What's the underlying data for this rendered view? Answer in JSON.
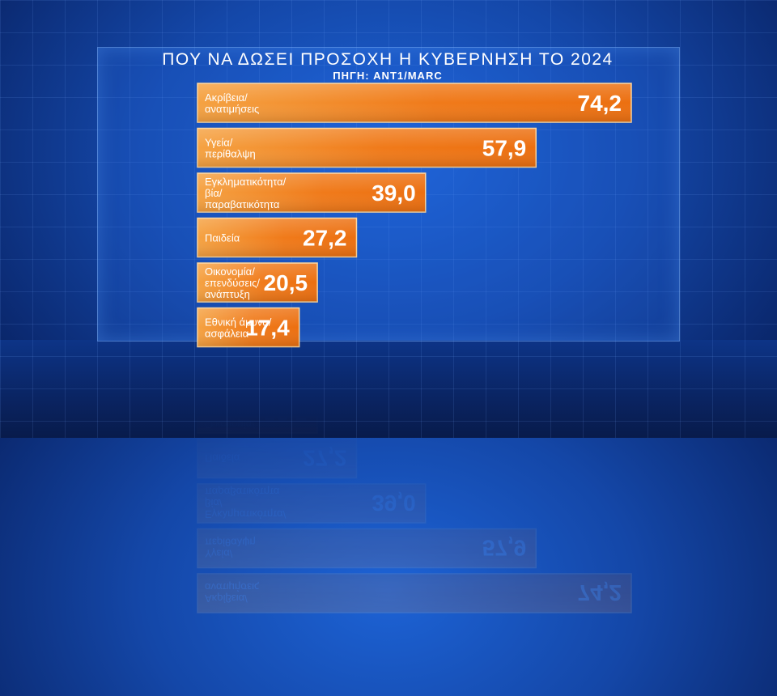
{
  "chart_data": {
    "type": "bar",
    "orientation": "horizontal",
    "title": "ΠΟΥ ΝΑ ΔΩΣΕΙ ΠΡΟΣΟΧΗ Η ΚΥΒΕΡΝΗΣΗ ΤΟ 2024",
    "subtitle": "ΠΗΓΗ: ANT1/MARC",
    "categories": [
      [
        "Ακρίβεια/",
        "ανατιμήσεις"
      ],
      [
        "Υγεία/",
        "περίθαλψη"
      ],
      [
        "Εγκληματικότητα/",
        "βία/",
        "παραβατικότητα"
      ],
      [
        "Παιδεία"
      ],
      [
        "Οικονομία/",
        "επενδύσεις/",
        "ανάπτυξη"
      ],
      [
        "Εθνική άμυνα/",
        "ασφάλεια"
      ]
    ],
    "values": [
      74.2,
      57.9,
      39.0,
      27.2,
      20.5,
      17.4
    ],
    "value_labels": [
      "74,2",
      "57,9",
      "39,0",
      "27,2",
      "20,5",
      "17,4"
    ],
    "bar_color": "#f07a1a",
    "bar_highlight": "#f6a446"
  }
}
